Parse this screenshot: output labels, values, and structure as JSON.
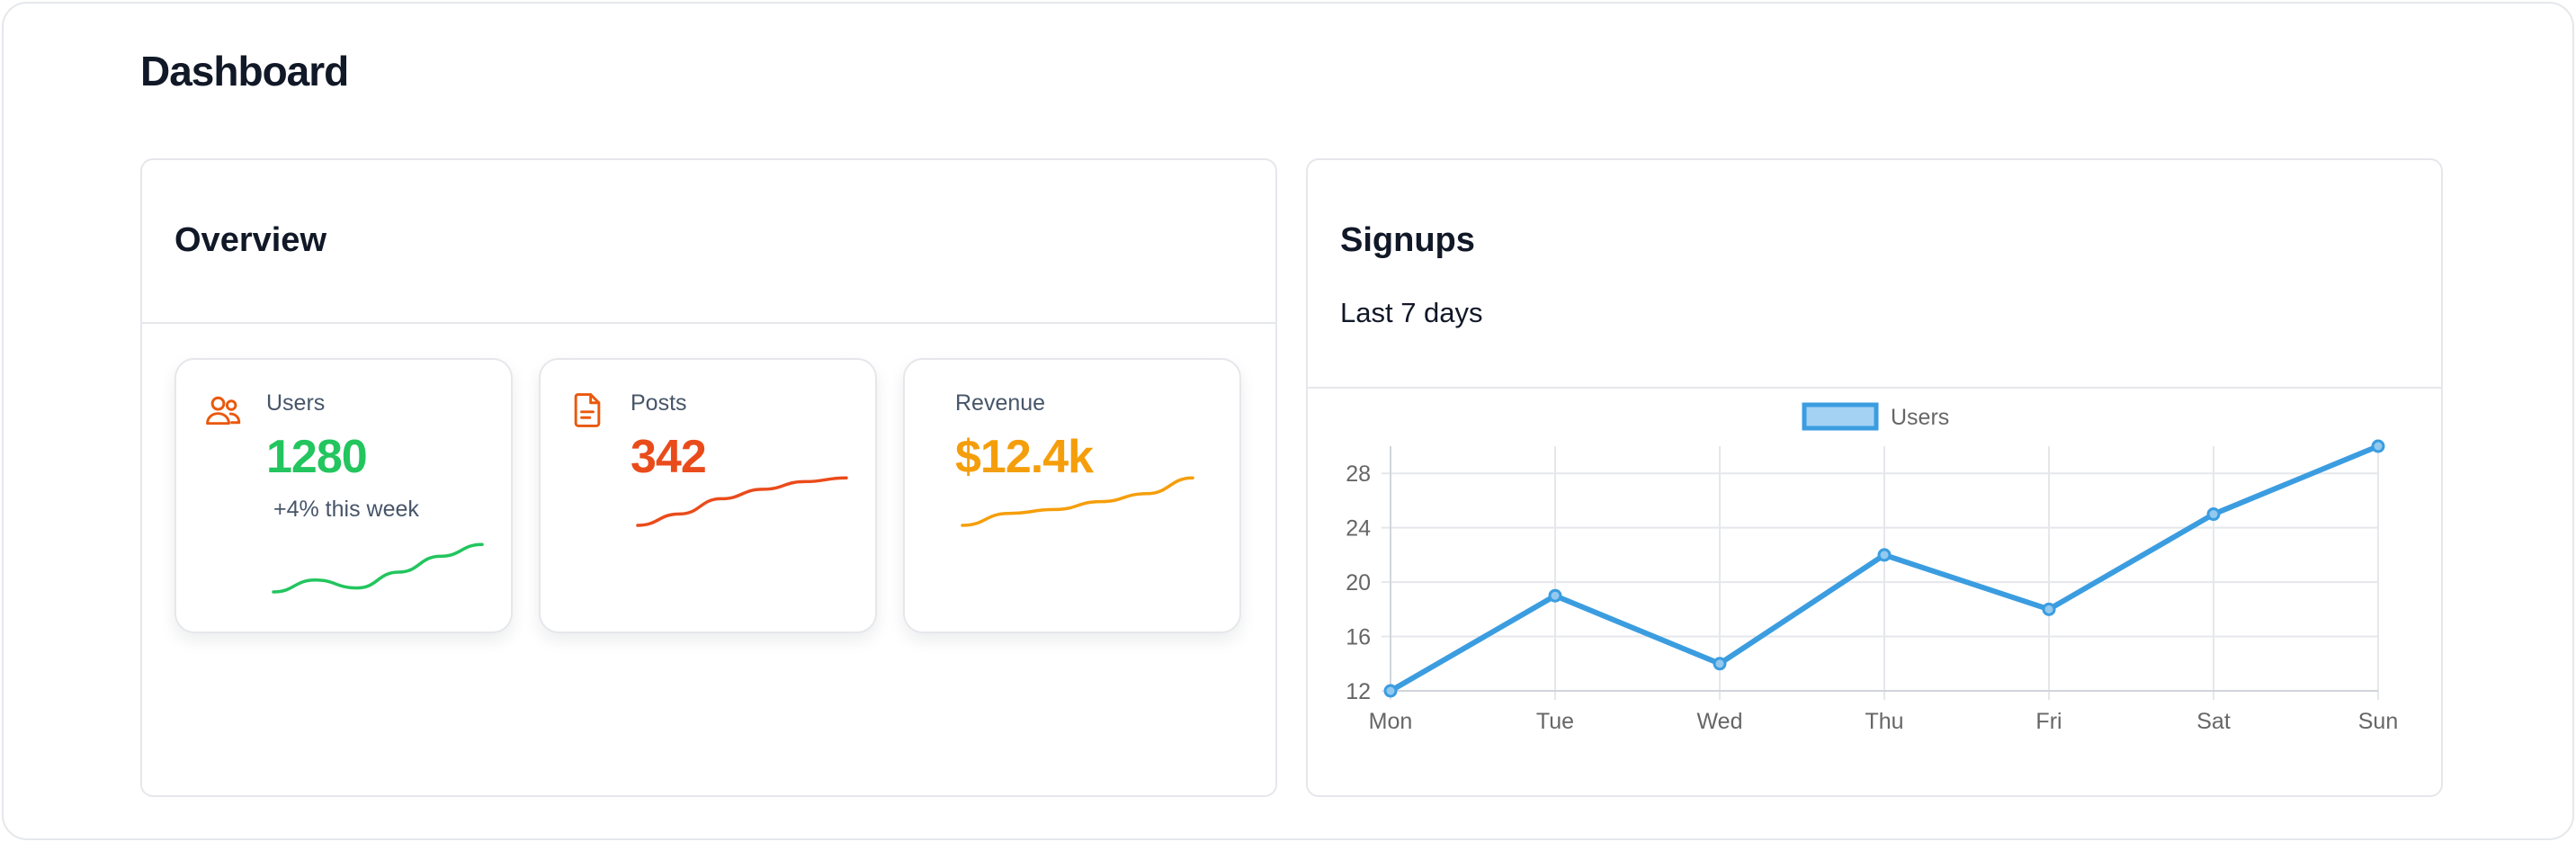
{
  "page": {
    "title": "Dashboard"
  },
  "overview": {
    "title": "Overview",
    "cards": [
      {
        "label": "Users",
        "value": "1280",
        "delta": "+4% this week",
        "icon": "users-icon",
        "color": "#22c55e",
        "trend": [
          20,
          23,
          21,
          25,
          29,
          32
        ]
      },
      {
        "label": "Posts",
        "value": "342",
        "icon": "document-icon",
        "color": "#ea4b1b",
        "trend": [
          10,
          16,
          24,
          29,
          33,
          35
        ]
      },
      {
        "label": "Revenue",
        "value": "$12.4k",
        "color": "#f59e0b",
        "trend": [
          10,
          13,
          14,
          16,
          18,
          22
        ]
      }
    ],
    "accent_icon_color": "#ea580c"
  },
  "signups": {
    "title": "Signups",
    "subtitle": "Last 7 days"
  },
  "chart_data": {
    "type": "line",
    "x": [
      "Mon",
      "Tue",
      "Wed",
      "Thu",
      "Fri",
      "Sat",
      "Sun"
    ],
    "series": [
      {
        "name": "Users",
        "values": [
          12,
          19,
          14,
          22,
          18,
          25,
          30
        ],
        "color": "#3b9de0"
      }
    ],
    "yticks": [
      12,
      16,
      20,
      24,
      28
    ],
    "ylim": [
      12,
      30
    ],
    "grid": true,
    "legend": "top-center"
  }
}
